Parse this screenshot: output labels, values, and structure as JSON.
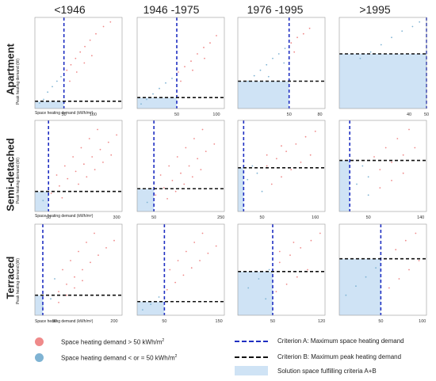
{
  "column_headers": [
    "<1946",
    "1946 -1975",
    "1976 -1995",
    ">1995"
  ],
  "row_headers": [
    "Apartment",
    "Semi-detached",
    "Terraced"
  ],
  "colors": {
    "above": "#ef8a8a",
    "below": "#7fb3d3",
    "criterion_a": "#1f2fc2",
    "criterion_b": "#111111",
    "solution": "#cfe3f5",
    "frame": "#999999"
  },
  "legend": {
    "above_label": "Space heating demand > 50 kWh/m",
    "below_label": "Space heating demand < or = 50 kWh/m",
    "unit_sup": "2",
    "criterion_a_label": "Criterion A: Maximum space heating demand",
    "criterion_b_label": "Criterion B: Maximum peak heating demand",
    "solution_label": "Solution space fulfilling criteria A+B"
  },
  "axis_labels": {
    "apartment_ylabel": "Peak heating demand (W)",
    "apartment_xlabel": "Space heating demand (kWh/m²)",
    "semi_ylabel": "Peak heating demand (W)",
    "semi_xlabel": "Space heating demand (kWh/m²)",
    "terraced_ylabel": "Peak heating demand (W)",
    "terraced_xlabel": "Space heating demand (kWh/m²)"
  },
  "chart_data": [
    {
      "type": "scatter",
      "row": "Apartment",
      "column": "<1946",
      "xlim": [
        0,
        150
      ],
      "ylim": [
        0,
        1
      ],
      "ticks": [
        50,
        100
      ],
      "criterion_a_x": 50,
      "criterion_b_y": 0.08,
      "series": [
        {
          "values": [
            [
              8,
              0.06
            ],
            [
              15,
              0.1
            ],
            [
              22,
              0.18
            ],
            [
              30,
              0.24
            ],
            [
              38,
              0.3
            ],
            [
              45,
              0.35
            ],
            [
              55,
              0.42
            ],
            [
              62,
              0.48
            ],
            [
              70,
              0.55
            ],
            [
              78,
              0.62
            ],
            [
              86,
              0.68
            ],
            [
              95,
              0.75
            ],
            [
              105,
              0.82
            ],
            [
              118,
              0.9
            ],
            [
              130,
              0.95
            ],
            [
              60,
              0.3
            ],
            [
              72,
              0.4
            ],
            [
              85,
              0.5
            ],
            [
              98,
              0.58
            ]
          ]
        }
      ]
    },
    {
      "type": "scatter",
      "row": "Apartment",
      "column": "1946 -1975",
      "xlim": [
        0,
        110
      ],
      "ylim": [
        0,
        1
      ],
      "ticks": [
        50,
        100
      ],
      "criterion_a_x": 50,
      "criterion_b_y": 0.12,
      "series": [
        {
          "values": [
            [
              5,
              0.05
            ],
            [
              12,
              0.1
            ],
            [
              20,
              0.16
            ],
            [
              28,
              0.22
            ],
            [
              36,
              0.28
            ],
            [
              44,
              0.33
            ],
            [
              52,
              0.4
            ],
            [
              60,
              0.46
            ],
            [
              68,
              0.52
            ],
            [
              76,
              0.6
            ],
            [
              84,
              0.67
            ],
            [
              92,
              0.72
            ],
            [
              100,
              0.8
            ],
            [
              55,
              0.3
            ],
            [
              70,
              0.42
            ],
            [
              85,
              0.55
            ]
          ]
        }
      ]
    },
    {
      "type": "scatter",
      "row": "Apartment",
      "column": "1976 -1995",
      "xlim": [
        0,
        85
      ],
      "ylim": [
        0,
        1
      ],
      "ticks": [
        50,
        80
      ],
      "criterion_a_x": 50,
      "criterion_b_y": 0.3,
      "series": [
        {
          "values": [
            [
              10,
              0.3
            ],
            [
              16,
              0.36
            ],
            [
              22,
              0.42
            ],
            [
              28,
              0.48
            ],
            [
              34,
              0.55
            ],
            [
              40,
              0.6
            ],
            [
              46,
              0.66
            ],
            [
              52,
              0.72
            ],
            [
              58,
              0.78
            ],
            [
              64,
              0.82
            ],
            [
              70,
              0.88
            ],
            [
              30,
              0.35
            ],
            [
              45,
              0.5
            ],
            [
              55,
              0.62
            ]
          ]
        }
      ]
    },
    {
      "type": "scatter",
      "row": "Apartment",
      "column": ">1995",
      "xlim": [
        0,
        50
      ],
      "ylim": [
        0,
        1
      ],
      "ticks": [
        40,
        50
      ],
      "criterion_a_x": 50,
      "criterion_b_y": 0.6,
      "series": [
        {
          "values": [
            [
              12,
              0.55
            ],
            [
              18,
              0.62
            ],
            [
              24,
              0.7
            ],
            [
              30,
              0.78
            ],
            [
              36,
              0.85
            ],
            [
              42,
              0.9
            ],
            [
              46,
              0.95
            ]
          ]
        }
      ]
    },
    {
      "type": "scatter",
      "row": "Semi-detached",
      "column": "<1946",
      "xlim": [
        0,
        320
      ],
      "ylim": [
        0,
        1
      ],
      "ticks": [
        50,
        300
      ],
      "criterion_a_x": 50,
      "criterion_b_y": 0.22,
      "series": [
        {
          "values": [
            [
              30,
              0.12
            ],
            [
              60,
              0.2
            ],
            [
              90,
              0.28
            ],
            [
              120,
              0.36
            ],
            [
              150,
              0.44
            ],
            [
              180,
              0.52
            ],
            [
              210,
              0.6
            ],
            [
              240,
              0.68
            ],
            [
              270,
              0.76
            ],
            [
              300,
              0.84
            ],
            [
              80,
              0.4
            ],
            [
              110,
              0.5
            ],
            [
              140,
              0.6
            ],
            [
              170,
              0.7
            ],
            [
              200,
              0.8
            ],
            [
              230,
              0.9
            ],
            [
              100,
              0.15
            ],
            [
              130,
              0.22
            ],
            [
              160,
              0.3
            ],
            [
              190,
              0.38
            ],
            [
              220,
              0.46
            ],
            [
              250,
              0.54
            ],
            [
              280,
              0.62
            ]
          ]
        }
      ]
    },
    {
      "type": "scatter",
      "row": "Semi-detached",
      "column": "1946 -1975",
      "xlim": [
        0,
        260
      ],
      "ylim": [
        0,
        1
      ],
      "ticks": [
        50,
        250
      ],
      "criterion_a_x": 50,
      "criterion_b_y": 0.25,
      "series": [
        {
          "values": [
            [
              30,
              0.1
            ],
            [
              55,
              0.18
            ],
            [
              80,
              0.26
            ],
            [
              105,
              0.34
            ],
            [
              130,
              0.42
            ],
            [
              155,
              0.5
            ],
            [
              180,
              0.58
            ],
            [
              205,
              0.66
            ],
            [
              230,
              0.74
            ],
            [
              70,
              0.4
            ],
            [
              95,
              0.5
            ],
            [
              120,
              0.6
            ],
            [
              145,
              0.7
            ],
            [
              170,
              0.8
            ],
            [
              195,
              0.9
            ],
            [
              90,
              0.14
            ],
            [
              115,
              0.22
            ],
            [
              140,
              0.3
            ],
            [
              165,
              0.38
            ],
            [
              190,
              0.46
            ]
          ]
        }
      ]
    },
    {
      "type": "scatter",
      "row": "Semi-detached",
      "column": "1976 -1995",
      "xlim": [
        0,
        180
      ],
      "ylim": [
        0,
        1
      ],
      "ticks": [
        50,
        160
      ],
      "criterion_a_x": 12,
      "criterion_b_y": 0.48,
      "series": [
        {
          "values": [
            [
              20,
              0.35
            ],
            [
              40,
              0.42
            ],
            [
              60,
              0.5
            ],
            [
              80,
              0.58
            ],
            [
              100,
              0.66
            ],
            [
              120,
              0.74
            ],
            [
              140,
              0.82
            ],
            [
              160,
              0.88
            ],
            [
              50,
              0.22
            ],
            [
              70,
              0.3
            ],
            [
              90,
              0.38
            ],
            [
              110,
              0.46
            ],
            [
              130,
              0.54
            ],
            [
              150,
              0.62
            ],
            [
              30,
              0.5
            ],
            [
              60,
              0.62
            ],
            [
              90,
              0.72
            ]
          ]
        }
      ]
    },
    {
      "type": "scatter",
      "row": "Semi-detached",
      "column": ">1995",
      "xlim": [
        0,
        150
      ],
      "ylim": [
        0,
        1
      ],
      "ticks": [
        50,
        140
      ],
      "criterion_a_x": 18,
      "criterion_b_y": 0.56,
      "series": [
        {
          "values": [
            [
              30,
              0.3
            ],
            [
              50,
              0.38
            ],
            [
              70,
              0.46
            ],
            [
              90,
              0.54
            ],
            [
              110,
              0.62
            ],
            [
              130,
              0.7
            ],
            [
              40,
              0.5
            ],
            [
              60,
              0.6
            ],
            [
              80,
              0.7
            ],
            [
              100,
              0.8
            ],
            [
              120,
              0.9
            ],
            [
              50,
              0.18
            ],
            [
              70,
              0.26
            ],
            [
              90,
              0.34
            ],
            [
              110,
              0.42
            ]
          ]
        }
      ]
    },
    {
      "type": "scatter",
      "row": "Terraced",
      "column": "<1946",
      "xlim": [
        0,
        220
      ],
      "ylim": [
        0,
        1
      ],
      "ticks": [
        50,
        200
      ],
      "criterion_a_x": 20,
      "criterion_b_y": 0.22,
      "series": [
        {
          "values": [
            [
              20,
              0.1
            ],
            [
              40,
              0.18
            ],
            [
              60,
              0.26
            ],
            [
              80,
              0.34
            ],
            [
              100,
              0.42
            ],
            [
              120,
              0.5
            ],
            [
              140,
              0.58
            ],
            [
              160,
              0.66
            ],
            [
              180,
              0.74
            ],
            [
              200,
              0.82
            ],
            [
              50,
              0.4
            ],
            [
              70,
              0.5
            ],
            [
              90,
              0.6
            ],
            [
              110,
              0.7
            ],
            [
              130,
              0.8
            ],
            [
              150,
              0.9
            ],
            [
              60,
              0.14
            ],
            [
              80,
              0.22
            ],
            [
              100,
              0.3
            ],
            [
              120,
              0.38
            ]
          ]
        }
      ]
    },
    {
      "type": "scatter",
      "row": "Terraced",
      "column": "1946 -1975",
      "xlim": [
        0,
        160
      ],
      "ylim": [
        0,
        1
      ],
      "ticks": [
        50,
        150
      ],
      "criterion_a_x": 50,
      "criterion_b_y": 0.15,
      "series": [
        {
          "values": [
            [
              10,
              0.06
            ],
            [
              25,
              0.12
            ],
            [
              40,
              0.2
            ],
            [
              55,
              0.28
            ],
            [
              70,
              0.36
            ],
            [
              85,
              0.44
            ],
            [
              100,
              0.52
            ],
            [
              115,
              0.6
            ],
            [
              130,
              0.68
            ],
            [
              145,
              0.76
            ],
            [
              60,
              0.5
            ],
            [
              75,
              0.6
            ],
            [
              90,
              0.7
            ],
            [
              105,
              0.8
            ],
            [
              120,
              0.9
            ]
          ]
        }
      ]
    },
    {
      "type": "scatter",
      "row": "Terraced",
      "column": "1976 -1995",
      "xlim": [
        0,
        125
      ],
      "ylim": [
        0,
        1
      ],
      "ticks": [
        50,
        120
      ],
      "criterion_a_x": 50,
      "criterion_b_y": 0.48,
      "series": [
        {
          "values": [
            [
              15,
              0.3
            ],
            [
              30,
              0.4
            ],
            [
              45,
              0.5
            ],
            [
              60,
              0.58
            ],
            [
              75,
              0.66
            ],
            [
              90,
              0.74
            ],
            [
              105,
              0.82
            ],
            [
              118,
              0.9
            ],
            [
              40,
              0.18
            ],
            [
              55,
              0.26
            ],
            [
              70,
              0.34
            ],
            [
              85,
              0.42
            ],
            [
              100,
              0.5
            ],
            [
              60,
              0.7
            ],
            [
              80,
              0.8
            ]
          ]
        }
      ]
    },
    {
      "type": "scatter",
      "row": "Terraced",
      "column": ">1995",
      "xlim": [
        0,
        105
      ],
      "ylim": [
        0,
        1
      ],
      "ticks": [
        50,
        100
      ],
      "criterion_a_x": 50,
      "criterion_b_y": 0.62,
      "series": [
        {
          "values": [
            [
              8,
              0.22
            ],
            [
              20,
              0.32
            ],
            [
              32,
              0.42
            ],
            [
              44,
              0.52
            ],
            [
              56,
              0.62
            ],
            [
              68,
              0.72
            ],
            [
              80,
              0.82
            ],
            [
              92,
              0.9
            ],
            [
              60,
              0.3
            ],
            [
              72,
              0.4
            ],
            [
              84,
              0.5
            ],
            [
              96,
              0.6
            ]
          ]
        }
      ]
    }
  ]
}
